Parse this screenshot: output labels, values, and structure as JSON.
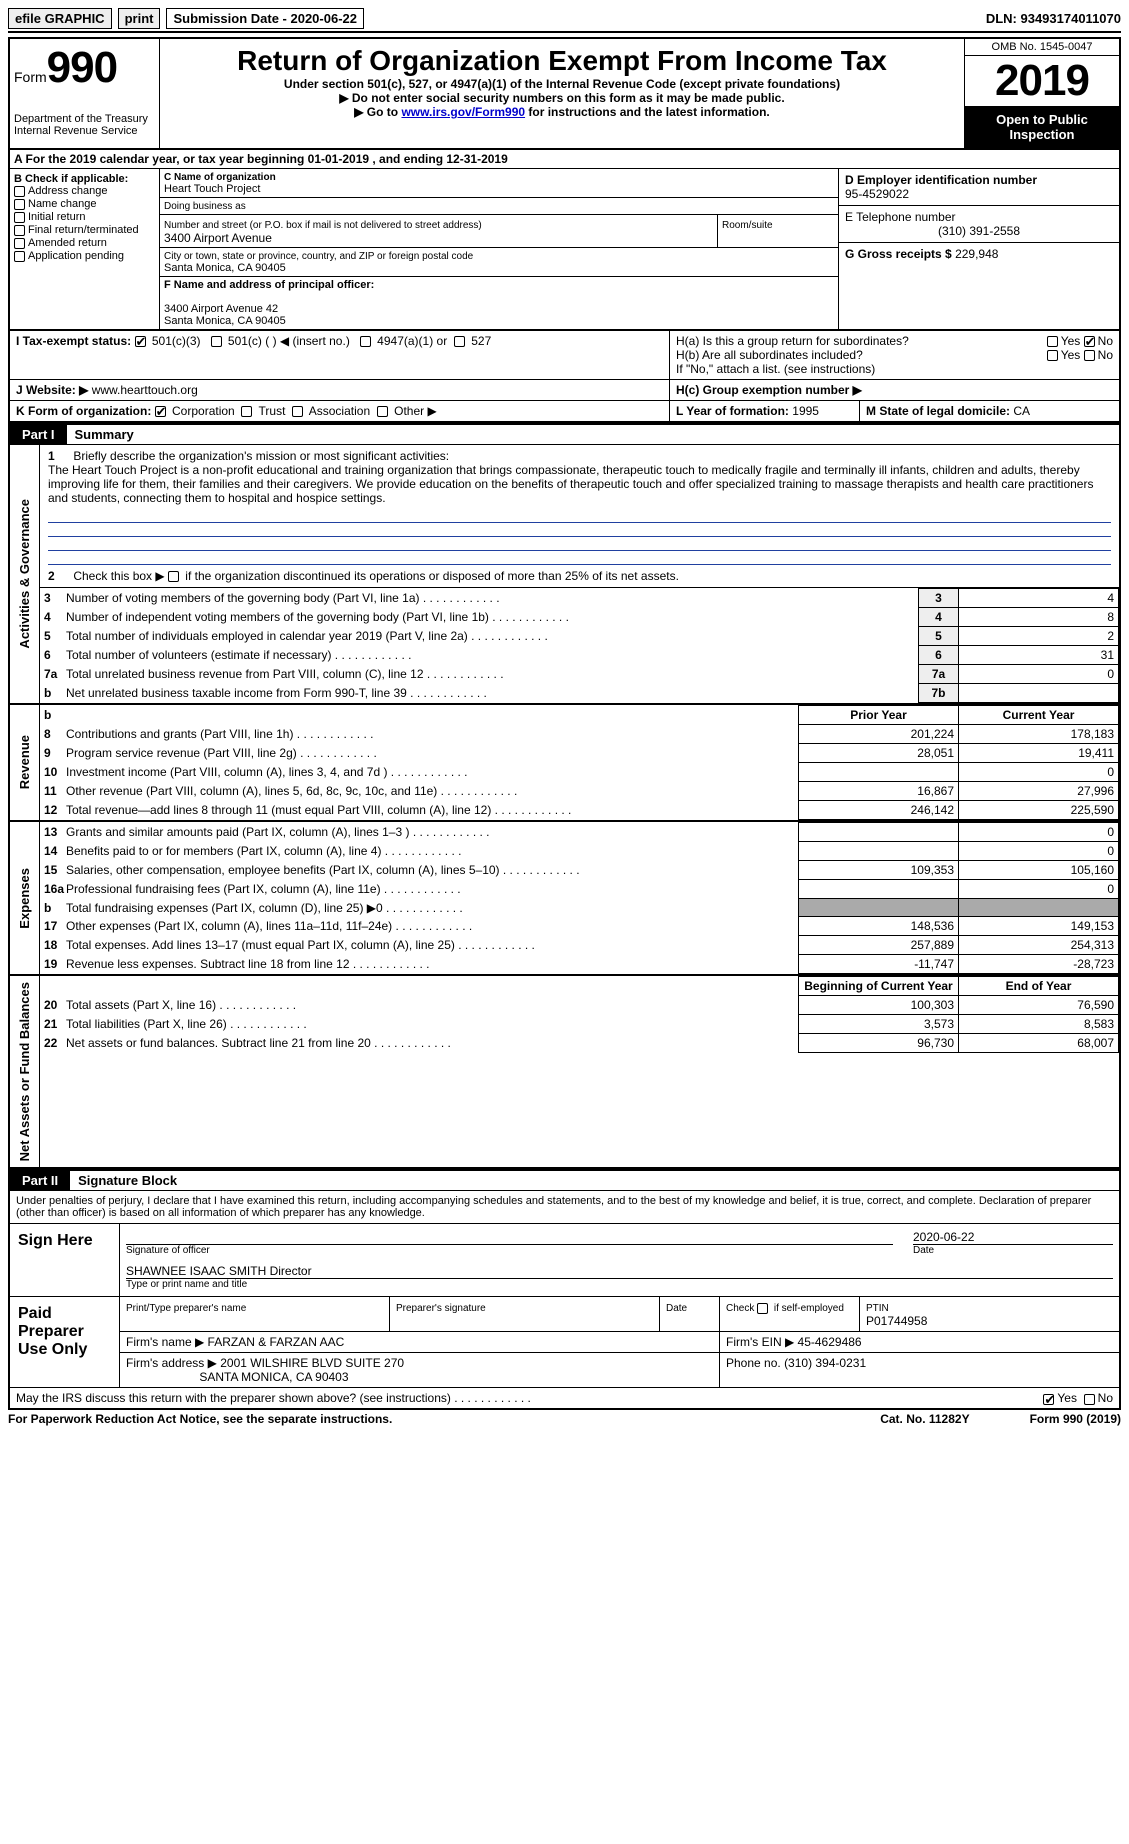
{
  "topbar": {
    "efile": "efile GRAPHIC",
    "print": "print",
    "subdate_label": "Submission Date - 2020-06-22",
    "dln": "DLN: 93493174011070"
  },
  "header": {
    "form_label": "Form",
    "form_num": "990",
    "dept": "Department of the Treasury\nInternal Revenue Service",
    "title": "Return of Organization Exempt From Income Tax",
    "sub1": "Under section 501(c), 527, or 4947(a)(1) of the Internal Revenue Code (except private foundations)",
    "sub2": "Do not enter social security numbers on this form as it may be made public.",
    "sub3_pre": "Go to ",
    "sub3_link": "www.irs.gov/Form990",
    "sub3_post": " for instructions and the latest information.",
    "omb": "OMB No. 1545-0047",
    "year": "2019",
    "open": "Open to Public Inspection"
  },
  "rowA": "A For the 2019 calendar year, or tax year beginning 01-01-2019    , and ending 12-31-2019",
  "colB": {
    "hdr": "B Check if applicable:",
    "addr": "Address change",
    "name": "Name change",
    "init": "Initial return",
    "final": "Final return/terminated",
    "amend": "Amended return",
    "app": "Application pending"
  },
  "colC": {
    "name_lbl": "C Name of organization",
    "name": "Heart Touch Project",
    "dba_lbl": "Doing business as",
    "street_lbl": "Number and street (or P.O. box if mail is not delivered to street address)",
    "street": "3400 Airport Avenue",
    "room_lbl": "Room/suite",
    "city_lbl": "City or town, state or province, country, and ZIP or foreign postal code",
    "city": "Santa Monica, CA  90405",
    "officer_lbl": "F Name and address of principal officer:",
    "officer_addr1": "3400 Airport Avenue 42",
    "officer_addr2": "Santa Monica, CA  90405"
  },
  "colD": {
    "ein_lbl": "D Employer identification number",
    "ein": "95-4529022",
    "tel_lbl": "E Telephone number",
    "tel": "(310) 391-2558",
    "gross_lbl": "G Gross receipts $",
    "gross": "229,948"
  },
  "H": {
    "ha": "H(a)  Is this a group return for subordinates?",
    "hb": "H(b)  Are all subordinates included?",
    "hb_note": "If \"No,\" attach a list. (see instructions)",
    "hc": "H(c)  Group exemption number ▶",
    "yes": "Yes",
    "no": "No"
  },
  "I": {
    "lbl": "I    Tax-exempt status:",
    "c3": "501(c)(3)",
    "c": "501(c) (  ) ◀ (insert no.)",
    "a1": "4947(a)(1) or",
    "s527": "527"
  },
  "J": {
    "lbl": "J   Website: ▶",
    "url": "www.hearttouch.org"
  },
  "K": {
    "lbl": "K Form of organization:",
    "corp": "Corporation",
    "trust": "Trust",
    "assoc": "Association",
    "other": "Other ▶"
  },
  "L": {
    "lbl": "L Year of formation:",
    "val": "1995"
  },
  "M": {
    "lbl": "M State of legal domicile:",
    "val": "CA"
  },
  "partI": {
    "lbl": "Part I",
    "title": "Summary"
  },
  "gov": {
    "vtab": "Activities & Governance",
    "l1_lbl": "1",
    "l1_text": "Briefly describe the organization's mission or most significant activities:",
    "l1_body": "The Heart Touch Project is a non-profit educational and training organization that brings compassionate, therapeutic touch to medically fragile and terminally ill infants, children and adults, thereby improving life for them, their families and their caregivers. We provide education on the benefits of therapeutic touch and offer specialized training to massage therapists and health care practitioners and students, connecting them to hospital and hospice settings.",
    "l2_lbl": "2",
    "l2_text": "Check this box ▶  if the organization discontinued its operations or disposed of more than 25% of its net assets.",
    "rows": [
      {
        "n": "3",
        "t": "Number of voting members of the governing body (Part VI, line 1a)",
        "c": "3",
        "v": "4"
      },
      {
        "n": "4",
        "t": "Number of independent voting members of the governing body (Part VI, line 1b)",
        "c": "4",
        "v": "8"
      },
      {
        "n": "5",
        "t": "Total number of individuals employed in calendar year 2019 (Part V, line 2a)",
        "c": "5",
        "v": "2"
      },
      {
        "n": "6",
        "t": "Total number of volunteers (estimate if necessary)",
        "c": "6",
        "v": "31"
      },
      {
        "n": "7a",
        "t": "Total unrelated business revenue from Part VIII, column (C), line 12",
        "c": "7a",
        "v": "0"
      },
      {
        "n": "b",
        "t": "Net unrelated business taxable income from Form 990-T, line 39",
        "c": "7b",
        "v": ""
      }
    ]
  },
  "rev": {
    "vtab": "Revenue",
    "cols": {
      "prior": "Prior Year",
      "curr": "Current Year"
    },
    "rows": [
      {
        "n": "8",
        "t": "Contributions and grants (Part VIII, line 1h)",
        "p": "201,224",
        "c": "178,183"
      },
      {
        "n": "9",
        "t": "Program service revenue (Part VIII, line 2g)",
        "p": "28,051",
        "c": "19,411"
      },
      {
        "n": "10",
        "t": "Investment income (Part VIII, column (A), lines 3, 4, and 7d )",
        "p": "",
        "c": "0"
      },
      {
        "n": "11",
        "t": "Other revenue (Part VIII, column (A), lines 5, 6d, 8c, 9c, 10c, and 11e)",
        "p": "16,867",
        "c": "27,996"
      },
      {
        "n": "12",
        "t": "Total revenue—add lines 8 through 11 (must equal Part VIII, column (A), line 12)",
        "p": "246,142",
        "c": "225,590"
      }
    ]
  },
  "exp": {
    "vtab": "Expenses",
    "rows": [
      {
        "n": "13",
        "t": "Grants and similar amounts paid (Part IX, column (A), lines 1–3 )",
        "p": "",
        "c": "0"
      },
      {
        "n": "14",
        "t": "Benefits paid to or for members (Part IX, column (A), line 4)",
        "p": "",
        "c": "0"
      },
      {
        "n": "15",
        "t": "Salaries, other compensation, employee benefits (Part IX, column (A), lines 5–10)",
        "p": "109,353",
        "c": "105,160"
      },
      {
        "n": "16a",
        "t": "Professional fundraising fees (Part IX, column (A), line 11e)",
        "p": "",
        "c": "0"
      },
      {
        "n": "b",
        "t": "Total fundraising expenses (Part IX, column (D), line 25) ▶0",
        "p": "shade",
        "c": "shade"
      },
      {
        "n": "17",
        "t": "Other expenses (Part IX, column (A), lines 11a–11d, 11f–24e)",
        "p": "148,536",
        "c": "149,153"
      },
      {
        "n": "18",
        "t": "Total expenses. Add lines 13–17 (must equal Part IX, column (A), line 25)",
        "p": "257,889",
        "c": "254,313"
      },
      {
        "n": "19",
        "t": "Revenue less expenses. Subtract line 18 from line 12",
        "p": "-11,747",
        "c": "-28,723"
      }
    ]
  },
  "net": {
    "vtab": "Net Assets or Fund Balances",
    "cols": {
      "beg": "Beginning of Current Year",
      "end": "End of Year"
    },
    "rows": [
      {
        "n": "20",
        "t": "Total assets (Part X, line 16)",
        "p": "100,303",
        "c": "76,590"
      },
      {
        "n": "21",
        "t": "Total liabilities (Part X, line 26)",
        "p": "3,573",
        "c": "8,583"
      },
      {
        "n": "22",
        "t": "Net assets or fund balances. Subtract line 21 from line 20",
        "p": "96,730",
        "c": "68,007"
      }
    ]
  },
  "partII": {
    "lbl": "Part II",
    "title": "Signature Block"
  },
  "sig": {
    "decl": "Under penalties of perjury, I declare that I have examined this return, including accompanying schedules and statements, and to the best of my knowledge and belief, it is true, correct, and complete. Declaration of preparer (other than officer) is based on all information of which preparer has any knowledge.",
    "sign_here": "Sign Here",
    "sig_officer": "Signature of officer",
    "date": "Date",
    "date_val": "2020-06-22",
    "name_title": "SHAWNEE ISAAC SMITH  Director",
    "type_name": "Type or print name and title",
    "paid": "Paid Preparer Use Only",
    "prep_name_lbl": "Print/Type preparer's name",
    "prep_sig_lbl": "Preparer's signature",
    "prep_date_lbl": "Date",
    "self_emp": "Check          if self-employed",
    "ptin_lbl": "PTIN",
    "ptin": "P01744958",
    "firm_name_lbl": "Firm's name      ▶",
    "firm_name": "FARZAN & FARZAN AAC",
    "firm_ein_lbl": "Firm's EIN ▶",
    "firm_ein": "45-4629486",
    "firm_addr_lbl": "Firm's address ▶",
    "firm_addr1": "2001 WILSHIRE BLVD SUITE 270",
    "firm_addr2": "SANTA MONICA, CA  90403",
    "phone_lbl": "Phone no.",
    "phone": "(310) 394-0231",
    "may_irs": "May the IRS discuss this return with the preparer shown above? (see instructions)"
  },
  "footer": {
    "l": "For Paperwork Reduction Act Notice, see the separate instructions.",
    "m": "Cat. No. 11282Y",
    "r": "Form 990 (2019)"
  }
}
